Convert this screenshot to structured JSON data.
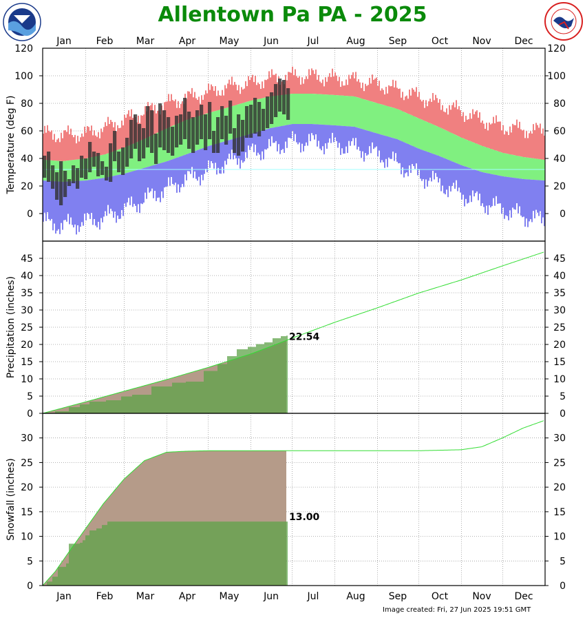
{
  "page": {
    "title": "Allentown Pa PA - 2025",
    "footer": "Image created: Fri, 27 Jun 2025 19:51 GMT",
    "logos": [
      "noaa-logo",
      "nws-logo"
    ],
    "colors": {
      "title": "#0a8a0a",
      "record_high": "#f08080",
      "normal": "#80f080",
      "record_low": "#8080f0",
      "observed": "#303030",
      "precip_normal": "#b59b89",
      "precip_actual": "#5fa34a",
      "normal_line": "#33dd33"
    }
  },
  "chart_data": [
    {
      "id": "temperature",
      "type": "area",
      "ylabel": "Temperature (deg F)",
      "ylim": [
        -20,
        120
      ],
      "yticks": [
        0,
        20,
        40,
        60,
        80,
        100,
        120
      ],
      "x_axis_labels": [
        "Jan",
        "Feb",
        "Mar",
        "Apr",
        "May",
        "Jun",
        "Jul",
        "Aug",
        "Sep",
        "Oct",
        "Nov",
        "Dec"
      ],
      "x_unit": "day of year",
      "series": [
        {
          "key": "record_high_band",
          "x": [
            1,
            15,
            32,
            45,
            60,
            75,
            91,
            105,
            121,
            135,
            152,
            165,
            182,
            196,
            213,
            227,
            244,
            258,
            274,
            288,
            305,
            320,
            335,
            350,
            365
          ],
          "values": [
            58,
            57,
            58,
            62,
            68,
            74,
            80,
            84,
            88,
            92,
            95,
            98,
            100,
            100,
            98,
            97,
            94,
            90,
            85,
            80,
            74,
            68,
            63,
            61,
            60
          ]
        },
        {
          "key": "normal_high",
          "x": [
            1,
            15,
            32,
            46,
            60,
            74,
            91,
            105,
            121,
            135,
            152,
            166,
            182,
            196,
            213,
            227,
            244,
            258,
            274,
            288,
            305,
            320,
            335,
            350,
            365
          ],
          "values": [
            39,
            38,
            40,
            43,
            48,
            54,
            62,
            68,
            73,
            77,
            82,
            85,
            87,
            87,
            86,
            85,
            80,
            76,
            69,
            63,
            55,
            49,
            44,
            41,
            39
          ]
        },
        {
          "key": "normal_low",
          "x": [
            1,
            15,
            32,
            46,
            60,
            74,
            91,
            105,
            121,
            135,
            152,
            166,
            182,
            196,
            213,
            227,
            244,
            258,
            274,
            288,
            305,
            320,
            335,
            350,
            365
          ],
          "values": [
            24,
            23,
            24,
            26,
            29,
            33,
            38,
            43,
            49,
            53,
            58,
            62,
            65,
            65,
            64,
            63,
            58,
            54,
            47,
            42,
            35,
            30,
            27,
            25,
            24
          ]
        },
        {
          "key": "record_low_band",
          "x": [
            1,
            15,
            32,
            46,
            60,
            74,
            91,
            105,
            121,
            135,
            152,
            166,
            182,
            196,
            213,
            227,
            244,
            258,
            274,
            288,
            305,
            320,
            335,
            350,
            365
          ],
          "values": [
            -6,
            -9,
            -6,
            -3,
            3,
            10,
            18,
            25,
            31,
            37,
            44,
            48,
            52,
            52,
            50,
            48,
            43,
            36,
            28,
            22,
            14,
            8,
            3,
            -2,
            -5
          ]
        },
        {
          "key": "observed_2025",
          "x": [
            1,
            4,
            7,
            10,
            13,
            16,
            19,
            22,
            25,
            28,
            31,
            34,
            37,
            40,
            43,
            46,
            49,
            52,
            55,
            58,
            61,
            64,
            67,
            70,
            73,
            76,
            79,
            82,
            85,
            88,
            91,
            94,
            97,
            100,
            103,
            106,
            109,
            112,
            115,
            118,
            121,
            124,
            127,
            130,
            133,
            136,
            139,
            142,
            145,
            148,
            151,
            154,
            157,
            160,
            163,
            166,
            169,
            172,
            175,
            178
          ],
          "highs": [
            42,
            45,
            35,
            30,
            38,
            31,
            25,
            35,
            33,
            42,
            40,
            52,
            45,
            44,
            38,
            34,
            51,
            60,
            45,
            48,
            55,
            68,
            72,
            65,
            62,
            78,
            75,
            58,
            80,
            75,
            70,
            63,
            71,
            72,
            84,
            74,
            70,
            75,
            79,
            72,
            81,
            60,
            70,
            78,
            71,
            82,
            62,
            72,
            68,
            78,
            79,
            84,
            81,
            76,
            85,
            88,
            94,
            98,
            97,
            91
          ],
          "lows": [
            26,
            23,
            18,
            10,
            6,
            12,
            20,
            22,
            18,
            26,
            25,
            30,
            34,
            27,
            28,
            24,
            23,
            38,
            30,
            28,
            34,
            40,
            47,
            38,
            40,
            48,
            44,
            36,
            48,
            46,
            44,
            42,
            48,
            50,
            54,
            47,
            44,
            50,
            54,
            46,
            54,
            44,
            44,
            54,
            50,
            58,
            44,
            42,
            45,
            55,
            55,
            58,
            56,
            60,
            62,
            65,
            70,
            74,
            72,
            68
          ]
        }
      ]
    },
    {
      "id": "precipitation",
      "type": "area",
      "ylabel": "Precipitation (inches)",
      "ylim": [
        0,
        50
      ],
      "yticks": [
        0,
        5,
        10,
        15,
        20,
        25,
        30,
        35,
        40,
        45
      ],
      "annotation": "22.54",
      "series": [
        {
          "key": "normal_cumulative",
          "x": [
            1,
            32,
            60,
            91,
            121,
            152,
            166,
            182,
            213,
            244,
            274,
            305,
            335,
            365
          ],
          "values": [
            0,
            3.3,
            6.4,
            9.8,
            13.3,
            17.2,
            19.3,
            21.8,
            26.4,
            30.6,
            34.9,
            38.7,
            42.8,
            46.8
          ]
        },
        {
          "key": "actual_cumulative",
          "x": [
            1,
            10,
            20,
            28,
            35,
            47,
            58,
            66,
            80,
            95,
            105,
            118,
            128,
            135,
            142,
            150,
            156,
            162,
            168,
            174,
            178
          ],
          "values": [
            0,
            0.6,
            1.8,
            2.6,
            3.4,
            3.8,
            4.9,
            5.4,
            7.8,
            8.9,
            9.2,
            12.3,
            14.3,
            16.6,
            18.6,
            19.3,
            20.1,
            20.6,
            21.8,
            22.4,
            22.54
          ]
        }
      ]
    },
    {
      "id": "snowfall",
      "type": "area",
      "ylabel": "Snowfall (inches)",
      "ylim": [
        0,
        35
      ],
      "yticks": [
        0,
        5,
        10,
        15,
        20,
        25,
        30
      ],
      "x_axis_labels": [
        "Jan",
        "Feb",
        "Mar",
        "Apr",
        "May",
        "Jun",
        "Jul",
        "Aug",
        "Sep",
        "Oct",
        "Nov",
        "Dec"
      ],
      "annotation": "13.00",
      "series": [
        {
          "key": "normal_cumulative",
          "x": [
            1,
            10,
            20,
            32,
            45,
            60,
            75,
            91,
            105,
            121,
            152,
            182,
            213,
            244,
            274,
            305,
            320,
            335,
            350,
            365
          ],
          "values": [
            0,
            2.8,
            6.8,
            11.5,
            16.6,
            21.6,
            25.4,
            27.1,
            27.3,
            27.4,
            27.4,
            27.4,
            27.4,
            27.4,
            27.4,
            27.6,
            28.2,
            30.0,
            32.0,
            33.5
          ]
        },
        {
          "key": "actual_cumulative",
          "x": [
            1,
            4,
            8,
            12,
            18,
            20,
            28,
            30,
            32,
            35,
            40,
            44,
            48,
            55,
            178
          ],
          "values": [
            0,
            0.8,
            1.8,
            3.8,
            4.5,
            8.5,
            8.7,
            9.2,
            10.2,
            11.2,
            11.6,
            12.3,
            13.0,
            13.0,
            13.0
          ]
        }
      ]
    }
  ]
}
